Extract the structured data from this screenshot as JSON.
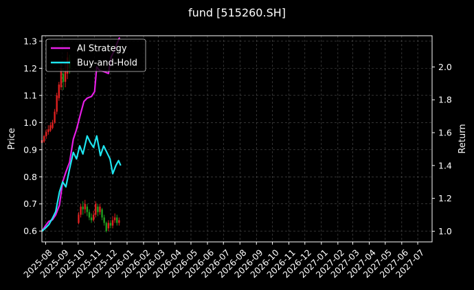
{
  "chart_data": {
    "type": "line",
    "title": "fund [515260.SH]",
    "ylabel_left": "Price",
    "ylabel_right": "Return",
    "grid": true,
    "legend_position": "top-left",
    "x_start": "2025-07-25",
    "x_end": "2027-07-28",
    "ylim_left": [
      0.56,
      1.32
    ],
    "ylim_right": [
      0.935,
      2.19
    ],
    "x_ticks": [
      "2025-08",
      "2025-09",
      "2025-10",
      "2025-11",
      "2025-12",
      "2026-01",
      "2026-02",
      "2026-03",
      "2026-04",
      "2026-05",
      "2026-06",
      "2026-07",
      "2026-08",
      "2026-09",
      "2026-10",
      "2026-11",
      "2026-12",
      "2027-01",
      "2027-02",
      "2027-03",
      "2027-04",
      "2027-05",
      "2027-06",
      "2027-07"
    ],
    "y_ticks_left": [
      0.6,
      0.7,
      0.8,
      0.9,
      1.0,
      1.1,
      1.2,
      1.3
    ],
    "y_ticks_right": [
      1.0,
      1.2,
      1.4,
      1.6,
      1.8,
      2.0
    ],
    "colors": {
      "ai_strategy": "#e61ee6",
      "buy_and_hold": "#1ee6f0",
      "candle_up": "#e02020",
      "candle_down": "#20a020",
      "grid": "#555555"
    },
    "series": [
      {
        "name": "AI Strategy",
        "axis": "right",
        "points": [
          [
            "2025-07-25",
            1.0
          ],
          [
            "2025-07-31",
            1.03
          ],
          [
            "2025-08-07",
            1.06
          ],
          [
            "2025-08-14",
            1.07
          ],
          [
            "2025-08-20",
            1.1
          ],
          [
            "2025-08-27",
            1.16
          ],
          [
            "2025-09-02",
            1.3
          ],
          [
            "2025-09-08",
            1.36
          ],
          [
            "2025-09-15",
            1.42
          ],
          [
            "2025-09-22",
            1.56
          ],
          [
            "2025-09-28",
            1.62
          ],
          [
            "2025-10-06",
            1.72
          ],
          [
            "2025-10-12",
            1.79
          ],
          [
            "2025-10-18",
            1.81
          ],
          [
            "2025-10-26",
            1.82
          ],
          [
            "2025-11-01",
            1.85
          ],
          [
            "2025-11-05",
            2.0
          ],
          [
            "2025-11-10",
            1.98
          ],
          [
            "2025-11-20",
            1.97
          ],
          [
            "2025-11-27",
            1.96
          ],
          [
            "2025-12-02",
            2.06
          ],
          [
            "2025-12-08",
            2.1
          ],
          [
            "2025-12-14",
            2.15
          ],
          [
            "2025-12-18",
            2.18
          ]
        ]
      },
      {
        "name": "Buy-and-Hold",
        "axis": "right",
        "points": [
          [
            "2025-07-25",
            1.0
          ],
          [
            "2025-08-01",
            1.02
          ],
          [
            "2025-08-07",
            1.04
          ],
          [
            "2025-08-14",
            1.08
          ],
          [
            "2025-08-20",
            1.12
          ],
          [
            "2025-08-27",
            1.24
          ],
          [
            "2025-09-02",
            1.3
          ],
          [
            "2025-09-08",
            1.27
          ],
          [
            "2025-09-15",
            1.38
          ],
          [
            "2025-09-22",
            1.48
          ],
          [
            "2025-09-28",
            1.44
          ],
          [
            "2025-10-04",
            1.52
          ],
          [
            "2025-10-10",
            1.47
          ],
          [
            "2025-10-18",
            1.58
          ],
          [
            "2025-10-24",
            1.54
          ],
          [
            "2025-10-30",
            1.51
          ],
          [
            "2025-11-05",
            1.58
          ],
          [
            "2025-11-12",
            1.46
          ],
          [
            "2025-11-18",
            1.52
          ],
          [
            "2025-11-24",
            1.48
          ],
          [
            "2025-11-30",
            1.44
          ],
          [
            "2025-12-05",
            1.35
          ],
          [
            "2025-12-11",
            1.4
          ],
          [
            "2025-12-16",
            1.43
          ],
          [
            "2025-12-20",
            1.4
          ]
        ]
      }
    ],
    "candlesticks_note": "daily price candles drawn on the left axis",
    "candles": [
      [
        "2025-07-25",
        0.925,
        0.935,
        0.92,
        0.94
      ],
      [
        "2025-07-29",
        0.93,
        0.95,
        0.925,
        0.955
      ],
      [
        "2025-08-02",
        0.95,
        0.965,
        0.94,
        0.975
      ],
      [
        "2025-08-06",
        0.965,
        0.975,
        0.955,
        0.99
      ],
      [
        "2025-08-10",
        0.97,
        0.99,
        0.965,
        1.0
      ],
      [
        "2025-08-14",
        0.98,
        1.0,
        0.975,
        1.01
      ],
      [
        "2025-08-18",
        1.0,
        1.04,
        0.995,
        1.05
      ],
      [
        "2025-08-22",
        1.04,
        1.1,
        1.03,
        1.11
      ],
      [
        "2025-08-26",
        1.09,
        1.14,
        1.08,
        1.15
      ],
      [
        "2025-08-30",
        1.13,
        1.2,
        1.12,
        1.22
      ],
      [
        "2025-09-03",
        1.18,
        1.15,
        1.12,
        1.2
      ],
      [
        "2025-09-07",
        1.15,
        1.19,
        1.13,
        1.22
      ],
      [
        "2025-09-11",
        1.18,
        1.24,
        1.16,
        1.26
      ],
      [
        "2025-09-15",
        1.23,
        1.2,
        1.18,
        1.25
      ],
      [
        "2025-10-02",
        0.63,
        0.66,
        0.625,
        0.67
      ],
      [
        "2025-10-06",
        0.66,
        0.69,
        0.65,
        0.7
      ],
      [
        "2025-10-10",
        0.69,
        0.68,
        0.66,
        0.71
      ],
      [
        "2025-10-14",
        0.68,
        0.7,
        0.665,
        0.715
      ],
      [
        "2025-10-18",
        0.69,
        0.67,
        0.655,
        0.7
      ],
      [
        "2025-10-22",
        0.67,
        0.65,
        0.64,
        0.68
      ],
      [
        "2025-10-26",
        0.65,
        0.64,
        0.63,
        0.665
      ],
      [
        "2025-10-30",
        0.64,
        0.66,
        0.635,
        0.675
      ],
      [
        "2025-11-03",
        0.66,
        0.7,
        0.65,
        0.71
      ],
      [
        "2025-11-07",
        0.69,
        0.67,
        0.655,
        0.7
      ],
      [
        "2025-11-11",
        0.67,
        0.69,
        0.66,
        0.7
      ],
      [
        "2025-11-15",
        0.68,
        0.65,
        0.64,
        0.685
      ],
      [
        "2025-11-19",
        0.65,
        0.63,
        0.62,
        0.66
      ],
      [
        "2025-11-23",
        0.63,
        0.6,
        0.595,
        0.635
      ],
      [
        "2025-11-27",
        0.61,
        0.63,
        0.6,
        0.64
      ],
      [
        "2025-12-01",
        0.63,
        0.62,
        0.61,
        0.64
      ],
      [
        "2025-12-05",
        0.62,
        0.64,
        0.61,
        0.655
      ],
      [
        "2025-12-09",
        0.64,
        0.65,
        0.63,
        0.665
      ],
      [
        "2025-12-13",
        0.65,
        0.63,
        0.62,
        0.66
      ],
      [
        "2025-12-17",
        0.63,
        0.64,
        0.62,
        0.65
      ]
    ]
  }
}
